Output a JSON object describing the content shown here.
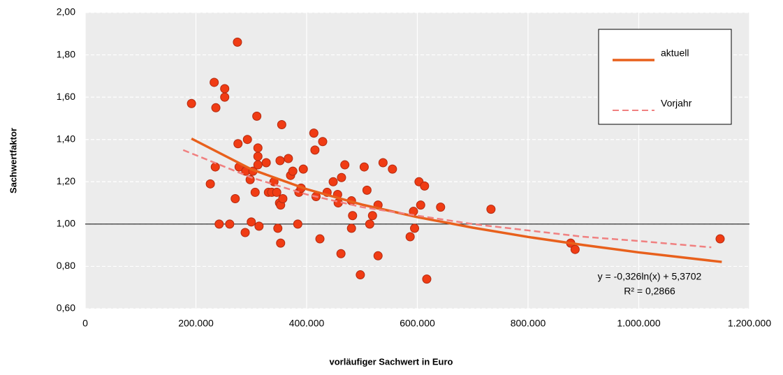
{
  "chart_data": {
    "type": "scatter",
    "x_label": "vorläufiger Sachwert in Euro",
    "y_label": "Sachwertfaktor",
    "xlim": [
      0,
      1200000
    ],
    "ylim": [
      0.6,
      2.0
    ],
    "xticks": [
      0,
      {
        "value": 200000,
        "label": "200.000"
      },
      {
        "value": 400000,
        "label": "400.000"
      },
      {
        "value": 600000,
        "label": "600.000"
      },
      {
        "value": 800000,
        "label": "800.000"
      },
      {
        "value": 1000000,
        "label": "1.000.000"
      },
      {
        "value": 1200000,
        "label": "1.200.000"
      }
    ],
    "yticks": [
      {
        "value": 0.6,
        "label": "0,60"
      },
      {
        "value": 0.8,
        "label": "0,80"
      },
      {
        "value": 1,
        "label": "1,00"
      },
      {
        "value": 1.2,
        "label": "1,20"
      },
      {
        "value": 1.4,
        "label": "1,40"
      },
      {
        "value": 1.6,
        "label": "1,60"
      },
      {
        "value": 1.8,
        "label": "1,80"
      },
      {
        "value": 2,
        "label": "2,00"
      }
    ],
    "grid": true,
    "reference_line": 1,
    "legend": "top-right",
    "annotations": [
      "y = -0,326ln(x) + 5,3702",
      "R² = 0,2866"
    ],
    "series": [
      {
        "type": "scatter",
        "color": "#f03c14",
        "x": [
          192000,
          233000,
          236000,
          252000,
          252000,
          275000,
          226000,
          235000,
          242000,
          261000,
          271000,
          276000,
          278000,
          289000,
          290000,
          293000,
          298000,
          300000,
          303000,
          307000,
          310000,
          312000,
          312000,
          312000,
          314000,
          327000,
          331000,
          337000,
          341000,
          346000,
          348000,
          351000,
          353000,
          355000,
          352000,
          353000,
          357000,
          367000,
          371000,
          375000,
          384000,
          386000,
          390000,
          394000,
          413000,
          415000,
          417000,
          424000,
          429000,
          437000,
          448000,
          456000,
          457000,
          462000,
          463000,
          469000,
          481000,
          481000,
          483000,
          497000,
          504000,
          509000,
          514000,
          519000,
          529000,
          529000,
          538000,
          555000,
          587000,
          593000,
          595000,
          603000,
          606000,
          613000,
          617000,
          642000,
          733000,
          877000,
          885000,
          1147000
        ],
        "values": [
          1.57,
          1.67,
          1.55,
          1.64,
          1.6,
          1.86,
          1.19,
          1.27,
          1.0,
          1.0,
          1.12,
          1.38,
          1.27,
          0.96,
          1.25,
          1.4,
          1.21,
          1.01,
          1.25,
          1.15,
          1.51,
          1.32,
          1.36,
          1.28,
          0.99,
          1.29,
          1.15,
          1.15,
          1.2,
          1.15,
          0.98,
          1.1,
          1.09,
          1.47,
          1.3,
          0.91,
          1.12,
          1.31,
          1.23,
          1.25,
          1.0,
          1.15,
          1.17,
          1.26,
          1.43,
          1.35,
          1.13,
          0.93,
          1.39,
          1.15,
          1.2,
          1.14,
          1.1,
          0.86,
          1.22,
          1.28,
          1.11,
          0.98,
          1.04,
          0.76,
          1.27,
          1.16,
          1.0,
          1.04,
          1.09,
          0.85,
          1.29,
          1.26,
          0.94,
          1.06,
          0.98,
          1.2,
          1.09,
          1.18,
          0.74,
          1.08,
          1.07,
          0.91,
          0.88,
          0.93
        ]
      },
      {
        "type": "line",
        "name": "aktuell",
        "color": "#e8601c",
        "line_style": "solid",
        "x": [
          192000,
          300000,
          400000,
          500000,
          600000,
          700000,
          800000,
          900000,
          1000000,
          1150000
        ],
        "values": [
          1.404,
          1.259,
          1.165,
          1.092,
          1.033,
          0.983,
          0.939,
          0.901,
          0.866,
          0.821
        ]
      },
      {
        "type": "line",
        "name": "Vorjahr",
        "color": "#f08080",
        "line_style": "dashed",
        "x": [
          177000,
          300000,
          400000,
          500000,
          600000,
          700000,
          800000,
          900000,
          1000000,
          1131000
        ],
        "values": [
          1.35,
          1.22,
          1.14,
          1.08,
          1.04,
          1.0,
          0.97,
          0.94,
          0.92,
          0.89
        ]
      }
    ]
  }
}
